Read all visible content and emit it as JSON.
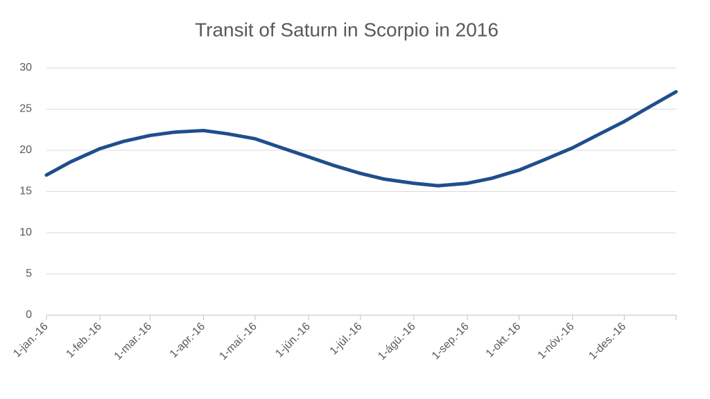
{
  "chart_data": {
    "type": "line",
    "title": "Transit of Saturn in Scorpio in 2016",
    "x": [
      "2016-01-01",
      "2016-01-15",
      "2016-02-01",
      "2016-02-15",
      "2016-03-01",
      "2016-03-15",
      "2016-04-01",
      "2016-04-15",
      "2016-05-01",
      "2016-05-15",
      "2016-06-01",
      "2016-06-15",
      "2016-07-01",
      "2016-07-15",
      "2016-08-01",
      "2016-08-15",
      "2016-09-01",
      "2016-09-15",
      "2016-10-01",
      "2016-10-15",
      "2016-11-01",
      "2016-11-15",
      "2016-12-01",
      "2016-12-15",
      "2016-12-31"
    ],
    "series": [
      {
        "color": "#1f4e8c",
        "values": [
          17.0,
          18.6,
          20.2,
          21.1,
          21.8,
          22.2,
          22.4,
          22.0,
          21.4,
          20.4,
          19.2,
          18.2,
          17.2,
          16.5,
          16.0,
          15.7,
          16.0,
          16.6,
          17.6,
          18.8,
          20.3,
          21.8,
          23.5,
          25.2,
          27.1
        ]
      }
    ],
    "xlim": [
      "2016-01-01",
      "2016-12-31"
    ],
    "xticks": [
      {
        "value": "2016-01-01",
        "label": "1-jan.-16"
      },
      {
        "value": "2016-02-01",
        "label": "1-feb.-16"
      },
      {
        "value": "2016-03-01",
        "label": "1-mar.-16"
      },
      {
        "value": "2016-04-01",
        "label": "1-apr.-16"
      },
      {
        "value": "2016-05-01",
        "label": "1-maí.-16"
      },
      {
        "value": "2016-06-01",
        "label": "1-jún.-16"
      },
      {
        "value": "2016-07-01",
        "label": "1-júl.-16"
      },
      {
        "value": "2016-08-01",
        "label": "1-ágú.-16"
      },
      {
        "value": "2016-09-01",
        "label": "1-sep.-16"
      },
      {
        "value": "2016-10-01",
        "label": "1-okt.-16"
      },
      {
        "value": "2016-11-01",
        "label": "1-nóv.-16"
      },
      {
        "value": "2016-12-01",
        "label": "1-des.-16"
      }
    ],
    "ylim": [
      0,
      30
    ],
    "yticks": [
      0,
      5,
      10,
      15,
      20,
      25,
      30
    ],
    "grid": true
  }
}
